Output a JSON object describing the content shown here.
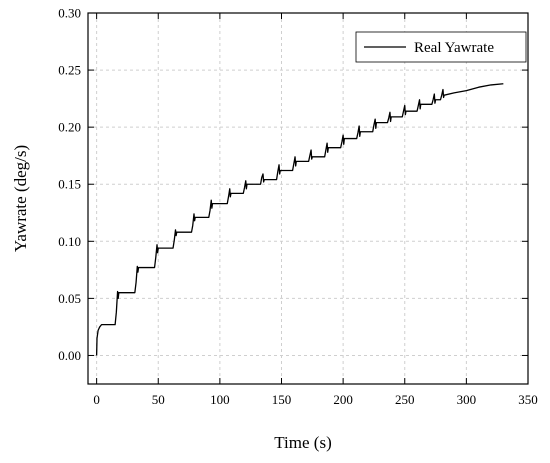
{
  "chart_data": {
    "type": "line",
    "title": "",
    "xlabel": "Time (s)",
    "ylabel": "Yawrate (deg/s)",
    "xlim": [
      -7,
      350
    ],
    "ylim": [
      -0.025,
      0.3
    ],
    "xticks": [
      0,
      50,
      100,
      150,
      200,
      250,
      300,
      350
    ],
    "yticks": [
      0.0,
      0.05,
      0.1,
      0.15,
      0.2,
      0.25,
      0.3
    ],
    "xtick_labels": [
      "0",
      "50",
      "100",
      "150",
      "200",
      "250",
      "300",
      "350"
    ],
    "ytick_labels": [
      "0.00",
      "0.05",
      "0.10",
      "0.15",
      "0.20",
      "0.25",
      "0.30"
    ],
    "grid": true,
    "legend_position": "top-right",
    "series": [
      {
        "name": "Real Yawrate",
        "color": "#000000",
        "x": [
          0,
          0.3,
          1.2,
          2.5,
          4,
          6,
          15,
          16,
          17,
          17.5,
          18,
          31,
          32,
          33,
          33.5,
          34,
          47,
          48,
          49,
          49.5,
          50,
          62,
          63,
          64,
          64.5,
          65,
          77,
          78,
          79,
          79.5,
          80,
          91,
          92,
          93,
          93.5,
          94,
          106,
          107,
          108,
          108.5,
          109,
          119,
          120,
          121,
          121.5,
          122,
          133,
          134,
          135,
          135.5,
          136,
          146,
          147,
          148,
          148.5,
          149,
          159,
          160,
          161,
          161.5,
          162,
          172,
          173,
          174,
          174.5,
          175,
          185,
          186,
          187,
          187.5,
          188,
          198,
          199,
          200,
          200.5,
          201,
          211,
          212,
          213,
          213.5,
          214,
          224,
          225,
          226,
          226.5,
          227,
          236,
          237,
          238,
          238.5,
          239,
          248,
          249,
          250,
          250.5,
          251,
          260,
          261,
          262,
          262.5,
          263,
          272,
          273,
          274,
          274.5,
          275,
          279,
          280,
          281,
          281.5,
          282,
          290,
          300,
          310,
          320,
          330
        ],
        "values": [
          0,
          0.015,
          0.022,
          0.025,
          0.027,
          0.027,
          0.027,
          0.038,
          0.056,
          0.05,
          0.055,
          0.055,
          0.064,
          0.078,
          0.073,
          0.077,
          0.077,
          0.086,
          0.097,
          0.09,
          0.094,
          0.094,
          0.101,
          0.11,
          0.105,
          0.108,
          0.108,
          0.114,
          0.124,
          0.118,
          0.121,
          0.121,
          0.127,
          0.136,
          0.129,
          0.133,
          0.133,
          0.139,
          0.146,
          0.139,
          0.142,
          0.142,
          0.147,
          0.153,
          0.146,
          0.15,
          0.15,
          0.156,
          0.159,
          0.152,
          0.154,
          0.154,
          0.161,
          0.167,
          0.159,
          0.162,
          0.162,
          0.168,
          0.174,
          0.166,
          0.17,
          0.17,
          0.175,
          0.18,
          0.172,
          0.174,
          0.174,
          0.18,
          0.186,
          0.178,
          0.182,
          0.182,
          0.187,
          0.193,
          0.185,
          0.19,
          0.19,
          0.195,
          0.201,
          0.192,
          0.196,
          0.196,
          0.202,
          0.207,
          0.199,
          0.204,
          0.204,
          0.208,
          0.213,
          0.205,
          0.209,
          0.209,
          0.214,
          0.219,
          0.211,
          0.214,
          0.214,
          0.219,
          0.224,
          0.216,
          0.22,
          0.22,
          0.224,
          0.229,
          0.221,
          0.224,
          0.224,
          0.228,
          0.233,
          0.226,
          0.228,
          0.23,
          0.232,
          0.235,
          0.237,
          0.238
        ]
      }
    ]
  }
}
